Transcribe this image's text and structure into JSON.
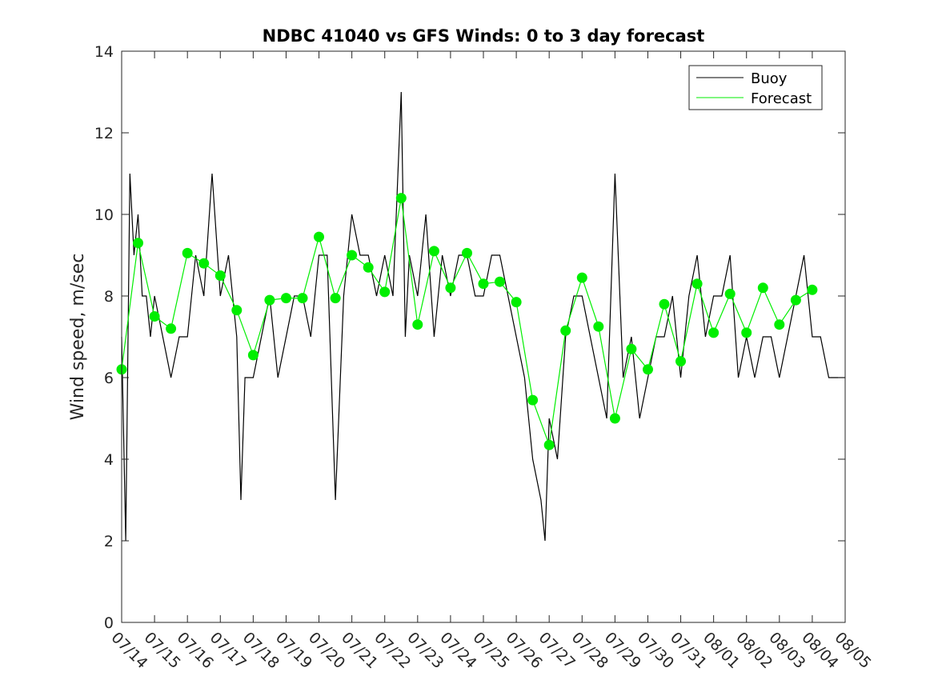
{
  "chart_data": {
    "type": "line",
    "title": "NDBC 41040 vs GFS Winds: 0 to 3 day forecast",
    "xlabel": "",
    "ylabel": "Wind speed, m/sec",
    "ylim": [
      0,
      14
    ],
    "yticks": [
      0,
      2,
      4,
      6,
      8,
      10,
      12,
      14
    ],
    "xlim": [
      "07/14",
      "08/05"
    ],
    "xticks": [
      "07/14",
      "07/15",
      "07/16",
      "07/17",
      "07/18",
      "07/19",
      "07/20",
      "07/21",
      "07/22",
      "07/23",
      "07/24",
      "07/25",
      "07/26",
      "07/27",
      "07/28",
      "07/29",
      "07/30",
      "07/31",
      "08/01",
      "08/02",
      "08/03",
      "08/04",
      "08/05"
    ],
    "grid": false,
    "legend": {
      "position": "top-right",
      "entries": [
        "Buoy",
        "Forecast"
      ]
    },
    "colors": {
      "buoy": "#000000",
      "forecast": "#00ee00",
      "markers": "#00ee00",
      "axes": "#262626"
    },
    "series": [
      {
        "name": "Buoy",
        "x": [
          "07/14 00:00",
          "07/14 03:00",
          "07/14 06:00",
          "07/14 09:00",
          "07/14 12:00",
          "07/14 15:00",
          "07/14 18:00",
          "07/14 21:00",
          "07/15 00:00",
          "07/15 06:00",
          "07/15 12:00",
          "07/15 18:00",
          "07/16 00:00",
          "07/16 06:00",
          "07/16 12:00",
          "07/16 18:00",
          "07/17 00:00",
          "07/17 06:00",
          "07/17 12:00",
          "07/17 15:00",
          "07/17 18:00",
          "07/18 00:00",
          "07/18 06:00",
          "07/18 12:00",
          "07/18 18:00",
          "07/19 00:00",
          "07/19 06:00",
          "07/19 12:00",
          "07/19 18:00",
          "07/20 00:00",
          "07/20 06:00",
          "07/20 12:00",
          "07/20 18:00",
          "07/21 00:00",
          "07/21 06:00",
          "07/21 12:00",
          "07/21 18:00",
          "07/22 00:00",
          "07/22 06:00",
          "07/22 12:00",
          "07/22 15:00",
          "07/22 18:00",
          "07/23 00:00",
          "07/23 06:00",
          "07/23 12:00",
          "07/23 18:00",
          "07/24 00:00",
          "07/24 06:00",
          "07/24 12:00",
          "07/24 18:00",
          "07/25 00:00",
          "07/25 06:00",
          "07/25 12:00",
          "07/25 18:00",
          "07/26 00:00",
          "07/26 06:00",
          "07/26 12:00",
          "07/26 18:00",
          "07/26 21:00",
          "07/27 00:00",
          "07/27 06:00",
          "07/27 12:00",
          "07/27 18:00",
          "07/28 00:00",
          "07/28 06:00",
          "07/28 12:00",
          "07/28 18:00",
          "07/29 00:00",
          "07/29 06:00",
          "07/29 12:00",
          "07/29 18:00",
          "07/30 00:00",
          "07/30 06:00",
          "07/30 12:00",
          "07/30 18:00",
          "07/31 00:00",
          "07/31 06:00",
          "07/31 12:00",
          "07/31 18:00",
          "08/01 00:00",
          "08/01 06:00",
          "08/01 12:00",
          "08/01 18:00",
          "08/02 00:00",
          "08/02 06:00",
          "08/02 12:00",
          "08/02 18:00",
          "08/03 00:00",
          "08/03 06:00",
          "08/03 12:00",
          "08/03 18:00",
          "08/04 00:00",
          "08/04 06:00",
          "08/04 12:00",
          "08/04 18:00",
          "08/05 00:00"
        ],
        "values": [
          7,
          2,
          11,
          9,
          10,
          8,
          8,
          7,
          8,
          7,
          6,
          7,
          7,
          9,
          8,
          11,
          8,
          9,
          7,
          3,
          6,
          6,
          7,
          8,
          6,
          7,
          8,
          8,
          7,
          9,
          9,
          3,
          8,
          10,
          9,
          9,
          8,
          9,
          8,
          13,
          7,
          9,
          8,
          10,
          7,
          9,
          8,
          9,
          9,
          8,
          8,
          9,
          9,
          8,
          7,
          6,
          4,
          3,
          2,
          5,
          4,
          7,
          8,
          8,
          7,
          6,
          5,
          11,
          6,
          7,
          5,
          6,
          7,
          7,
          8,
          6,
          8,
          9,
          7,
          8,
          8,
          9,
          6,
          7,
          6,
          7,
          7,
          6,
          7,
          8,
          9,
          7,
          7,
          6,
          6,
          6
        ]
      },
      {
        "name": "Forecast",
        "x": [
          "07/14 00:00",
          "07/14 12:00",
          "07/15 00:00",
          "07/15 12:00",
          "07/16 00:00",
          "07/16 12:00",
          "07/17 00:00",
          "07/17 12:00",
          "07/18 00:00",
          "07/18 12:00",
          "07/19 00:00",
          "07/19 12:00",
          "07/20 00:00",
          "07/20 12:00",
          "07/21 00:00",
          "07/21 12:00",
          "07/22 00:00",
          "07/22 12:00",
          "07/23 00:00",
          "07/23 12:00",
          "07/24 00:00",
          "07/24 12:00",
          "07/25 00:00",
          "07/25 12:00",
          "07/26 00:00",
          "07/26 12:00",
          "07/27 00:00",
          "07/27 12:00",
          "07/28 00:00",
          "07/28 12:00",
          "07/29 00:00",
          "07/29 12:00",
          "07/30 00:00",
          "07/30 12:00",
          "07/31 00:00",
          "07/31 12:00",
          "08/01 00:00",
          "08/01 12:00",
          "08/02 00:00",
          "08/02 12:00",
          "08/03 00:00",
          "08/03 12:00",
          "08/04 00:00"
        ],
        "values": [
          6.2,
          9.3,
          7.5,
          7.2,
          9.05,
          8.8,
          8.5,
          7.65,
          6.55,
          7.9,
          7.95,
          7.95,
          9.45,
          7.95,
          9.0,
          8.7,
          8.1,
          10.4,
          7.3,
          9.1,
          8.2,
          9.05,
          8.3,
          8.35,
          7.85,
          5.45,
          4.35,
          7.15,
          8.45,
          7.25,
          5.0,
          6.7,
          6.2,
          7.8,
          6.4,
          8.3,
          7.1,
          8.05,
          7.1,
          8.2,
          7.3,
          7.9,
          8.15
        ]
      }
    ],
    "markers": {
      "x": [
        "07/14 00:00",
        "07/14 12:00",
        "07/15 00:00",
        "07/15 12:00",
        "07/16 00:00",
        "07/16 12:00",
        "07/17 00:00",
        "07/17 12:00",
        "07/18 00:00",
        "07/18 12:00",
        "07/19 00:00",
        "07/19 12:00",
        "07/20 00:00",
        "07/20 12:00",
        "07/21 00:00",
        "07/21 12:00",
        "07/22 00:00",
        "07/22 12:00",
        "07/23 00:00",
        "07/23 12:00",
        "07/24 00:00",
        "07/24 12:00",
        "07/25 00:00",
        "07/25 12:00",
        "07/26 00:00",
        "07/26 12:00",
        "07/27 00:00",
        "07/27 12:00",
        "07/28 00:00",
        "07/28 12:00",
        "07/29 00:00",
        "07/29 12:00",
        "07/30 00:00",
        "07/30 12:00",
        "07/31 00:00",
        "07/31 12:00",
        "08/01 00:00",
        "08/01 12:00",
        "08/02 00:00",
        "08/02 12:00",
        "08/03 00:00",
        "08/03 12:00",
        "08/04 00:00"
      ],
      "values": [
        6.2,
        9.3,
        7.5,
        7.2,
        9.05,
        8.8,
        8.5,
        7.65,
        6.55,
        7.9,
        7.95,
        7.95,
        9.45,
        7.95,
        9.0,
        8.7,
        8.1,
        10.4,
        7.3,
        9.1,
        8.2,
        9.05,
        8.3,
        8.35,
        7.85,
        5.45,
        4.35,
        7.15,
        8.45,
        7.25,
        5.0,
        6.7,
        6.2,
        7.8,
        6.4,
        8.3,
        7.1,
        8.05,
        7.1,
        8.2,
        7.3,
        7.9,
        8.15
      ]
    }
  }
}
